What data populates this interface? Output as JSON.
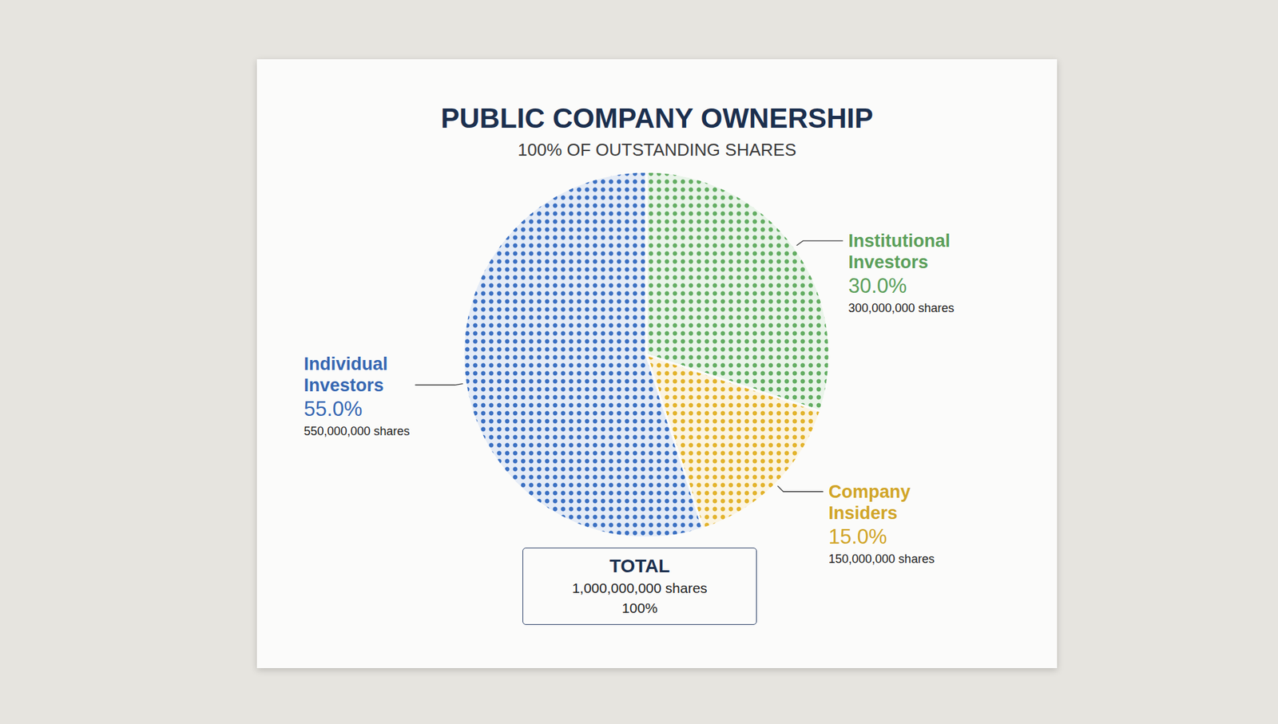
{
  "chart_data": {
    "type": "pie",
    "title": "PUBLIC COMPANY OWNERSHIP",
    "subtitle": "100% OF OUTSTANDING SHARES",
    "categories": [
      "Institutional Investors",
      "Company Insiders",
      "Individual Investors"
    ],
    "values": [
      30,
      15,
      55
    ],
    "value_labels": [
      "30.0%",
      "15.0%",
      "55.0%"
    ],
    "share_labels": [
      "300,000,000 shares",
      "150,000,000 shares",
      "550,000,000 shares"
    ],
    "colors": [
      "#63ad62",
      "#e3b32c",
      "#3b70c2"
    ],
    "data_labels": true,
    "total": {
      "label": "TOTAL",
      "shares": "1,000,000,000 shares",
      "percent": "100%"
    }
  }
}
